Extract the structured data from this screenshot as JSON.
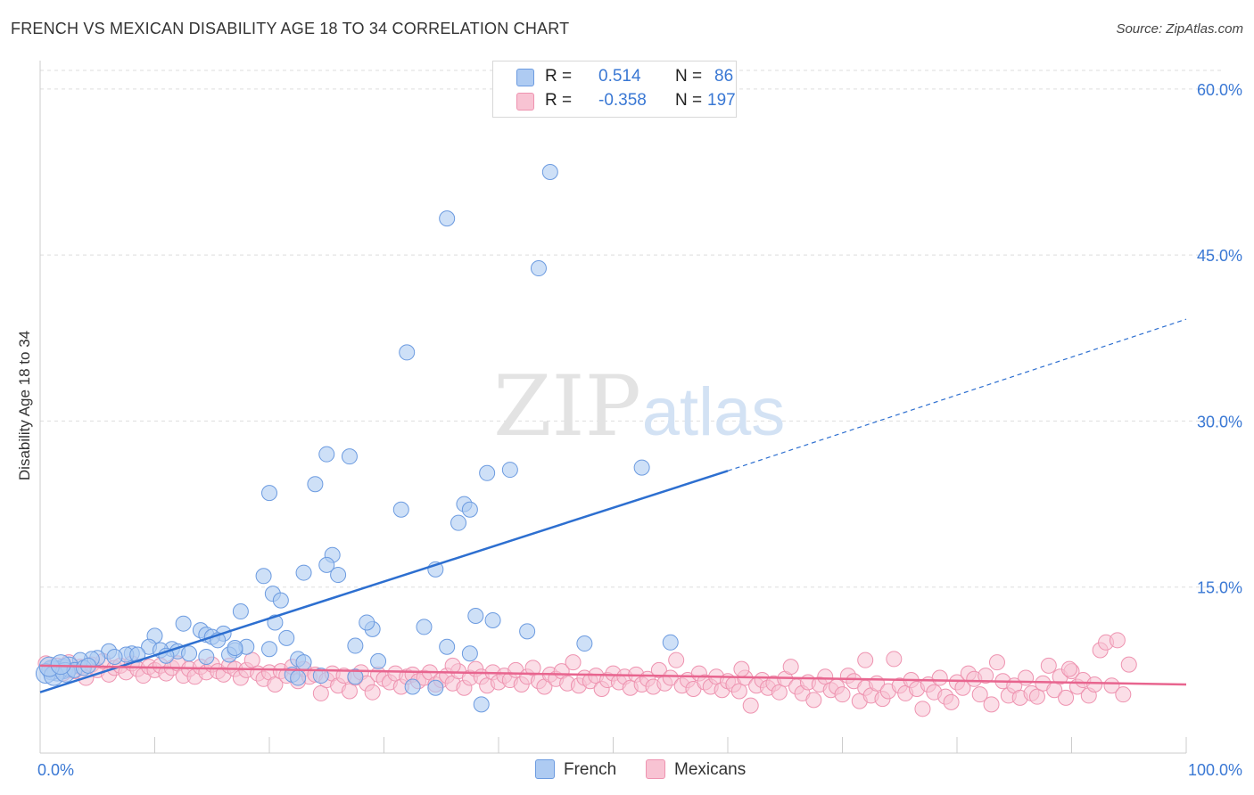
{
  "title": "FRENCH VS MEXICAN DISABILITY AGE 18 TO 34 CORRELATION CHART",
  "source": "Source: ZipAtlas.com",
  "watermark": {
    "zip": "ZIP",
    "atlas": "atlas"
  },
  "legend_box": {
    "rows": [
      {
        "r_label": "R =",
        "r_value": "0.514",
        "n_label": "N =",
        "n_value": "86"
      },
      {
        "r_label": "R =",
        "r_value": "-0.358",
        "n_label": "N =",
        "n_value": "197"
      }
    ]
  },
  "bottom_legend": {
    "french": "French",
    "mexicans": "Mexicans"
  },
  "colors": {
    "french_fill": "#aecbf2",
    "french_stroke": "#6c9be0",
    "french_line": "#2d6fd0",
    "mexican_fill": "#f8c3d3",
    "mexican_stroke": "#ee93b0",
    "mexican_line": "#e8658f",
    "tick_label": "#3a78d4",
    "grid": "#dddddd"
  },
  "chart_data": {
    "type": "scatter",
    "title": "FRENCH VS MEXICAN DISABILITY AGE 18 TO 34 CORRELATION CHART",
    "xlabel": "",
    "ylabel": "Disability Age 18 to 34",
    "xlim": [
      0,
      100
    ],
    "ylim": [
      0,
      62
    ],
    "x_tick_labels": [
      "0.0%",
      "100.0%"
    ],
    "y_ticks": [
      15,
      30,
      45,
      60
    ],
    "y_tick_labels": [
      "15.0%",
      "30.0%",
      "45.0%",
      "60.0%"
    ],
    "grid": true,
    "legend_position": "top-center",
    "series": [
      {
        "name": "French",
        "R": 0.514,
        "N": 86,
        "trend": {
          "x0": 0,
          "y0": 5.5,
          "x1": 60,
          "y1": 25.5,
          "dashed_to_x": 100,
          "dashed_to_y": 39.2
        },
        "points": [
          [
            44.5,
            52.5
          ],
          [
            35.5,
            48.3
          ],
          [
            43.5,
            43.8
          ],
          [
            32.0,
            36.2
          ],
          [
            27.0,
            26.8
          ],
          [
            41.0,
            25.6
          ],
          [
            25.0,
            27.0
          ],
          [
            24.0,
            24.3
          ],
          [
            31.5,
            22.0
          ],
          [
            37.0,
            22.5
          ],
          [
            37.5,
            22.0
          ],
          [
            36.5,
            20.8
          ],
          [
            39.0,
            25.3
          ],
          [
            20.0,
            23.5
          ],
          [
            25.5,
            17.9
          ],
          [
            25.0,
            17.0
          ],
          [
            26.0,
            16.1
          ],
          [
            23.0,
            16.3
          ],
          [
            34.5,
            16.6
          ],
          [
            20.3,
            14.4
          ],
          [
            19.5,
            16.0
          ],
          [
            21.0,
            13.8
          ],
          [
            17.5,
            12.8
          ],
          [
            20.5,
            11.8
          ],
          [
            29.0,
            11.2
          ],
          [
            39.5,
            12.0
          ],
          [
            38.0,
            12.4
          ],
          [
            33.5,
            11.4
          ],
          [
            12.5,
            11.7
          ],
          [
            14.0,
            11.1
          ],
          [
            16.0,
            10.8
          ],
          [
            14.5,
            10.7
          ],
          [
            10.0,
            10.6
          ],
          [
            15.0,
            10.5
          ],
          [
            15.5,
            10.2
          ],
          [
            18.0,
            9.6
          ],
          [
            22.5,
            8.5
          ],
          [
            27.5,
            9.7
          ],
          [
            20.0,
            9.4
          ],
          [
            17.0,
            9.3
          ],
          [
            11.5,
            9.4
          ],
          [
            12.0,
            9.2
          ],
          [
            9.5,
            9.6
          ],
          [
            10.5,
            9.3
          ],
          [
            8.0,
            9.0
          ],
          [
            7.5,
            8.9
          ],
          [
            6.0,
            9.2
          ],
          [
            5.0,
            8.6
          ],
          [
            4.5,
            8.5
          ],
          [
            6.5,
            8.7
          ],
          [
            3.5,
            8.4
          ],
          [
            13.0,
            9.0
          ],
          [
            11.0,
            8.8
          ],
          [
            8.5,
            8.9
          ],
          [
            14.5,
            8.7
          ],
          [
            16.5,
            8.9
          ],
          [
            17.0,
            9.5
          ],
          [
            21.5,
            10.4
          ],
          [
            28.5,
            11.8
          ],
          [
            35.5,
            9.6
          ],
          [
            47.5,
            9.9
          ],
          [
            55.0,
            10.0
          ],
          [
            37.5,
            9.0
          ],
          [
            29.5,
            8.3
          ],
          [
            23.0,
            8.2
          ],
          [
            22.0,
            7.1
          ],
          [
            24.5,
            7.0
          ],
          [
            27.5,
            6.9
          ],
          [
            2.0,
            7.6
          ],
          [
            1.5,
            7.4
          ],
          [
            2.5,
            7.8
          ],
          [
            1.0,
            7.5
          ],
          [
            0.5,
            7.2
          ],
          [
            1.2,
            7.0
          ],
          [
            2.2,
            7.3
          ],
          [
            0.8,
            7.8
          ],
          [
            3.0,
            7.5
          ],
          [
            3.8,
            7.7
          ],
          [
            4.2,
            7.9
          ],
          [
            1.8,
            8.0
          ],
          [
            22.5,
            6.8
          ],
          [
            32.5,
            6.0
          ],
          [
            34.5,
            5.9
          ],
          [
            38.5,
            4.4
          ],
          [
            52.5,
            25.8
          ],
          [
            42.5,
            11.0
          ]
        ]
      },
      {
        "name": "Mexicans",
        "R": -0.358,
        "N": 197,
        "trend": {
          "x0": 0,
          "y0": 7.9,
          "x1": 100,
          "y1": 6.2
        },
        "points": [
          [
            0.5,
            8.1
          ],
          [
            1.0,
            7.6
          ],
          [
            1.5,
            7.9
          ],
          [
            2.0,
            7.2
          ],
          [
            2.5,
            8.2
          ],
          [
            3.0,
            7.4
          ],
          [
            3.5,
            7.8
          ],
          [
            4.0,
            6.8
          ],
          [
            4.5,
            8.0
          ],
          [
            5.0,
            7.5
          ],
          [
            5.5,
            8.3
          ],
          [
            6.0,
            7.1
          ],
          [
            6.5,
            7.7
          ],
          [
            7.0,
            7.9
          ],
          [
            7.5,
            7.3
          ],
          [
            8.0,
            8.1
          ],
          [
            8.5,
            7.6
          ],
          [
            9.0,
            7.0
          ],
          [
            9.5,
            7.8
          ],
          [
            10.0,
            7.5
          ],
          [
            10.5,
            7.9
          ],
          [
            11.0,
            7.2
          ],
          [
            11.5,
            7.7
          ],
          [
            12.0,
            8.1
          ],
          [
            12.5,
            7.0
          ],
          [
            13.0,
            7.6
          ],
          [
            13.5,
            6.9
          ],
          [
            14.0,
            7.8
          ],
          [
            14.5,
            7.3
          ],
          [
            15.0,
            8.0
          ],
          [
            15.5,
            7.4
          ],
          [
            16.0,
            7.1
          ],
          [
            16.5,
            7.9
          ],
          [
            17.0,
            7.6
          ],
          [
            17.5,
            6.8
          ],
          [
            18.0,
            7.5
          ],
          [
            18.5,
            8.4
          ],
          [
            19.0,
            7.2
          ],
          [
            19.5,
            6.7
          ],
          [
            20.0,
            7.3
          ],
          [
            20.5,
            6.2
          ],
          [
            21.0,
            7.4
          ],
          [
            21.5,
            7.0
          ],
          [
            22.0,
            7.8
          ],
          [
            22.5,
            6.5
          ],
          [
            23.0,
            7.6
          ],
          [
            23.5,
            6.9
          ],
          [
            24.0,
            7.1
          ],
          [
            24.5,
            5.4
          ],
          [
            25.0,
            6.6
          ],
          [
            25.5,
            7.2
          ],
          [
            26.0,
            6.1
          ],
          [
            26.5,
            7.0
          ],
          [
            27.0,
            5.6
          ],
          [
            27.5,
            6.8
          ],
          [
            28.0,
            7.3
          ],
          [
            28.5,
            6.3
          ],
          [
            29.0,
            5.5
          ],
          [
            29.5,
            7.1
          ],
          [
            30.0,
            6.7
          ],
          [
            30.5,
            6.4
          ],
          [
            31.0,
            7.2
          ],
          [
            31.5,
            6.0
          ],
          [
            32.0,
            6.9
          ],
          [
            32.5,
            7.1
          ],
          [
            33.0,
            6.5
          ],
          [
            33.5,
            6.8
          ],
          [
            34.0,
            7.3
          ],
          [
            34.5,
            6.2
          ],
          [
            35.0,
            6.6
          ],
          [
            35.5,
            7.0
          ],
          [
            36.0,
            6.3
          ],
          [
            36.5,
            7.4
          ],
          [
            37.0,
            5.9
          ],
          [
            37.5,
            6.8
          ],
          [
            38.0,
            7.6
          ],
          [
            38.5,
            6.9
          ],
          [
            39.0,
            6.1
          ],
          [
            39.5,
            7.3
          ],
          [
            40.0,
            6.4
          ],
          [
            40.5,
            7.0
          ],
          [
            41.0,
            6.6
          ],
          [
            41.5,
            7.5
          ],
          [
            42.0,
            6.2
          ],
          [
            42.5,
            6.9
          ],
          [
            43.0,
            7.7
          ],
          [
            43.5,
            6.5
          ],
          [
            44.0,
            6.0
          ],
          [
            44.5,
            7.1
          ],
          [
            45.0,
            6.7
          ],
          [
            45.5,
            7.4
          ],
          [
            46.0,
            6.3
          ],
          [
            46.5,
            8.2
          ],
          [
            47.0,
            6.1
          ],
          [
            47.5,
            6.8
          ],
          [
            48.0,
            6.5
          ],
          [
            48.5,
            7.0
          ],
          [
            49.0,
            5.8
          ],
          [
            49.5,
            6.6
          ],
          [
            50.0,
            7.2
          ],
          [
            50.5,
            6.4
          ],
          [
            51.0,
            6.9
          ],
          [
            51.5,
            5.9
          ],
          [
            52.0,
            7.1
          ],
          [
            52.5,
            6.2
          ],
          [
            53.0,
            6.7
          ],
          [
            53.5,
            6.0
          ],
          [
            54.0,
            7.5
          ],
          [
            54.5,
            6.3
          ],
          [
            55.0,
            6.8
          ],
          [
            55.5,
            8.4
          ],
          [
            56.0,
            6.1
          ],
          [
            56.5,
            6.6
          ],
          [
            57.0,
            5.8
          ],
          [
            57.5,
            7.2
          ],
          [
            58.0,
            6.4
          ],
          [
            58.5,
            6.0
          ],
          [
            59.0,
            6.9
          ],
          [
            59.5,
            5.7
          ],
          [
            60.0,
            6.5
          ],
          [
            60.5,
            6.2
          ],
          [
            61.0,
            5.6
          ],
          [
            61.5,
            6.8
          ],
          [
            62.0,
            4.3
          ],
          [
            62.5,
            6.1
          ],
          [
            63.0,
            6.6
          ],
          [
            63.5,
            5.9
          ],
          [
            64.0,
            6.3
          ],
          [
            64.5,
            5.5
          ],
          [
            65.0,
            6.7
          ],
          [
            65.5,
            7.8
          ],
          [
            66.0,
            6.0
          ],
          [
            66.5,
            5.4
          ],
          [
            67.0,
            6.4
          ],
          [
            67.5,
            4.8
          ],
          [
            68.0,
            6.2
          ],
          [
            68.5,
            6.9
          ],
          [
            69.0,
            5.7
          ],
          [
            69.5,
            6.0
          ],
          [
            70.0,
            5.3
          ],
          [
            70.5,
            7.0
          ],
          [
            71.0,
            6.5
          ],
          [
            71.5,
            4.7
          ],
          [
            72.0,
            5.9
          ],
          [
            72.5,
            5.2
          ],
          [
            73.0,
            6.3
          ],
          [
            73.5,
            4.9
          ],
          [
            74.0,
            5.6
          ],
          [
            74.5,
            8.5
          ],
          [
            75.0,
            6.1
          ],
          [
            75.5,
            5.4
          ],
          [
            76.0,
            6.6
          ],
          [
            76.5,
            5.8
          ],
          [
            77.0,
            4.0
          ],
          [
            77.5,
            6.2
          ],
          [
            78.0,
            5.5
          ],
          [
            78.5,
            6.8
          ],
          [
            79.0,
            5.1
          ],
          [
            79.5,
            4.6
          ],
          [
            80.0,
            6.4
          ],
          [
            80.5,
            5.9
          ],
          [
            81.0,
            7.2
          ],
          [
            81.5,
            6.7
          ],
          [
            82.0,
            5.3
          ],
          [
            82.5,
            7.0
          ],
          [
            83.0,
            4.4
          ],
          [
            83.5,
            8.2
          ],
          [
            84.0,
            6.5
          ],
          [
            84.5,
            5.2
          ],
          [
            85.0,
            6.1
          ],
          [
            85.5,
            5.0
          ],
          [
            86.0,
            6.8
          ],
          [
            86.5,
            5.4
          ],
          [
            87.0,
            5.1
          ],
          [
            87.5,
            6.3
          ],
          [
            88.0,
            7.9
          ],
          [
            88.5,
            5.7
          ],
          [
            89.0,
            6.9
          ],
          [
            89.5,
            5.0
          ],
          [
            90.0,
            7.4
          ],
          [
            90.5,
            6.0
          ],
          [
            91.0,
            6.6
          ],
          [
            91.5,
            5.2
          ],
          [
            92.0,
            6.2
          ],
          [
            92.5,
            9.3
          ],
          [
            93.0,
            10.0
          ],
          [
            93.5,
            6.1
          ],
          [
            94.0,
            10.2
          ],
          [
            94.5,
            5.3
          ],
          [
            95.0,
            8.0
          ],
          [
            36.0,
            7.9
          ],
          [
            61.2,
            7.6
          ],
          [
            72.0,
            8.4
          ],
          [
            89.8,
            7.6
          ]
        ]
      }
    ]
  }
}
